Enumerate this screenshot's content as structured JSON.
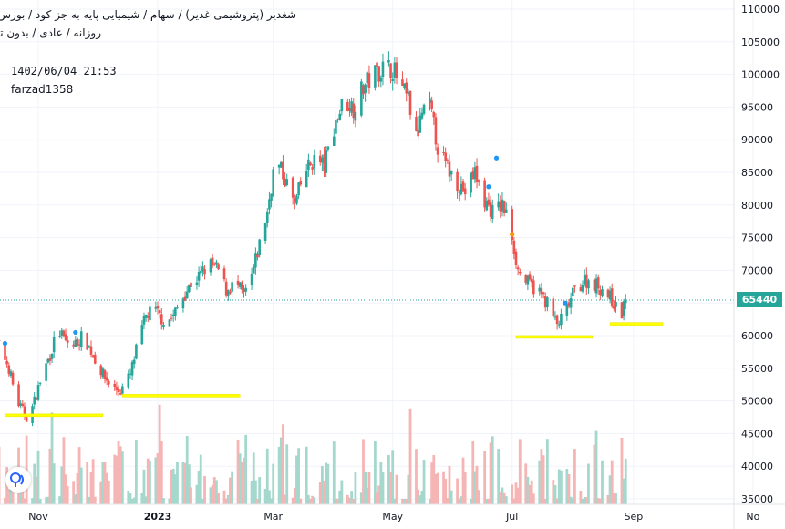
{
  "header": {
    "title": "شغدیر (پتروشیمی غدیر) / سهام / شیمیایی پایه به جز کود / بورس تهران",
    "subtitle": "روزانه / عادی / بدون تعدیل",
    "datetime": "1402/06/04 21:53",
    "author": "farzad1358"
  },
  "price_label": "65440",
  "colors": {
    "up": "#26a69a",
    "down": "#ef5350",
    "volume_up": "#a5d8cd",
    "volume_down": "#f6b5b5",
    "support": "#ffff00",
    "grid": "#f0f3fa",
    "price_line": "#26a69a",
    "marker_blue": "#2196f3",
    "marker_orange": "#ff9800"
  },
  "chart_data": {
    "type": "candlestick",
    "y_axis": {
      "min": 35000,
      "max": 110000,
      "position": "right",
      "ticks": [
        "35000",
        "40000",
        "45000",
        "50000",
        "55000",
        "60000",
        "65000",
        "70000",
        "75000",
        "80000",
        "85000",
        "90000",
        "95000",
        "100000",
        "105000",
        "110000"
      ]
    },
    "x_axis": {
      "ticks": [
        {
          "label": "Nov",
          "date": "2022-11-01"
        },
        {
          "label": "2023",
          "date": "2023-01-01"
        },
        {
          "label": "Mar",
          "date": "2023-03-01"
        },
        {
          "label": "May",
          "date": "2023-05-01"
        },
        {
          "label": "Jul",
          "date": "2023-07-01"
        },
        {
          "label": "Sep",
          "date": "2023-09-01"
        },
        {
          "label": "No",
          "date": "2023-11-01"
        }
      ]
    },
    "grid": true,
    "last_price": 65440,
    "price_path": [
      [
        "2022-10-08",
        60000
      ],
      [
        "2022-10-13",
        58000
      ],
      [
        "2022-10-17",
        55000
      ],
      [
        "2022-10-21",
        50000
      ],
      [
        "2022-10-26",
        47500
      ],
      [
        "2022-10-29",
        49000
      ],
      [
        "2022-11-03",
        54000
      ],
      [
        "2022-11-07",
        57000
      ],
      [
        "2022-11-11",
        61000
      ],
      [
        "2022-11-15",
        59000
      ],
      [
        "2022-11-19",
        58500
      ],
      [
        "2022-11-24",
        60000
      ],
      [
        "2022-11-29",
        57000
      ],
      [
        "2022-12-04",
        54000
      ],
      [
        "2022-12-09",
        52000
      ],
      [
        "2022-12-13",
        51500
      ],
      [
        "2022-12-18",
        54000
      ],
      [
        "2022-12-22",
        59000
      ],
      [
        "2022-12-26",
        63000
      ],
      [
        "2022-12-30",
        64000
      ],
      [
        "2023-01-05",
        62000
      ],
      [
        "2023-01-09",
        63000
      ],
      [
        "2023-01-14",
        66000
      ],
      [
        "2023-01-18",
        68000
      ],
      [
        "2023-01-22",
        69000
      ],
      [
        "2023-01-27",
        71000
      ],
      [
        "2023-02-01",
        70000
      ],
      [
        "2023-02-05",
        67000
      ],
      [
        "2023-02-10",
        68000
      ],
      [
        "2023-02-14",
        66000
      ],
      [
        "2023-02-18",
        69000
      ],
      [
        "2023-02-22",
        74000
      ],
      [
        "2023-02-26",
        79000
      ],
      [
        "2023-03-02",
        87000
      ],
      [
        "2023-03-07",
        84000
      ],
      [
        "2023-03-12",
        80000
      ],
      [
        "2023-03-17",
        85000
      ],
      [
        "2023-03-22",
        87000
      ],
      [
        "2023-03-27",
        86000
      ],
      [
        "2023-04-01",
        92000
      ],
      [
        "2023-04-06",
        96000
      ],
      [
        "2023-04-11",
        95000
      ],
      [
        "2023-04-16",
        98000
      ],
      [
        "2023-04-21",
        100000
      ],
      [
        "2023-04-26",
        101000
      ],
      [
        "2023-05-01",
        101000
      ],
      [
        "2023-05-05",
        98000
      ],
      [
        "2023-05-09",
        96000
      ],
      [
        "2023-05-13",
        90000
      ],
      [
        "2023-05-16",
        94000
      ],
      [
        "2023-05-20",
        95000
      ],
      [
        "2023-05-24",
        89000
      ],
      [
        "2023-05-28",
        86000
      ],
      [
        "2023-06-02",
        84000
      ],
      [
        "2023-06-07",
        82000
      ],
      [
        "2023-06-12",
        85000
      ],
      [
        "2023-06-16",
        81000
      ],
      [
        "2023-06-21",
        79000
      ],
      [
        "2023-06-26",
        80000
      ],
      [
        "2023-06-30",
        77000
      ],
      [
        "2023-07-04",
        70000
      ],
      [
        "2023-07-09",
        68000
      ],
      [
        "2023-07-14",
        67000
      ],
      [
        "2023-07-19",
        65000
      ],
      [
        "2023-07-24",
        61500
      ],
      [
        "2023-07-29",
        64000
      ],
      [
        "2023-08-02",
        67000
      ],
      [
        "2023-08-07",
        68500
      ],
      [
        "2023-08-12",
        68000
      ],
      [
        "2023-08-17",
        67000
      ],
      [
        "2023-08-22",
        65000
      ],
      [
        "2023-08-25",
        62500
      ],
      [
        "2023-08-28",
        65440
      ]
    ],
    "support_lines": [
      {
        "price": 47800,
        "from": "2022-10-15",
        "to": "2022-12-04"
      },
      {
        "price": 50800,
        "from": "2022-12-14",
        "to": "2023-02-12"
      },
      {
        "price": 59800,
        "from": "2023-07-03",
        "to": "2023-08-11"
      },
      {
        "price": 61800,
        "from": "2023-08-20",
        "to": "2023-09-16"
      }
    ],
    "markers": [
      {
        "date": "2022-10-15",
        "price": 58800,
        "color": "#2196f3"
      },
      {
        "date": "2022-11-20",
        "price": 60500,
        "color": "#2196f3"
      },
      {
        "date": "2023-06-19",
        "price": 82800,
        "color": "#2196f3"
      },
      {
        "date": "2023-06-23",
        "price": 87200,
        "color": "#2196f3"
      },
      {
        "date": "2023-07-01",
        "price": 75500,
        "color": "#ff9800"
      },
      {
        "date": "2023-07-28",
        "price": 65000,
        "color": "#2196f3"
      }
    ]
  }
}
